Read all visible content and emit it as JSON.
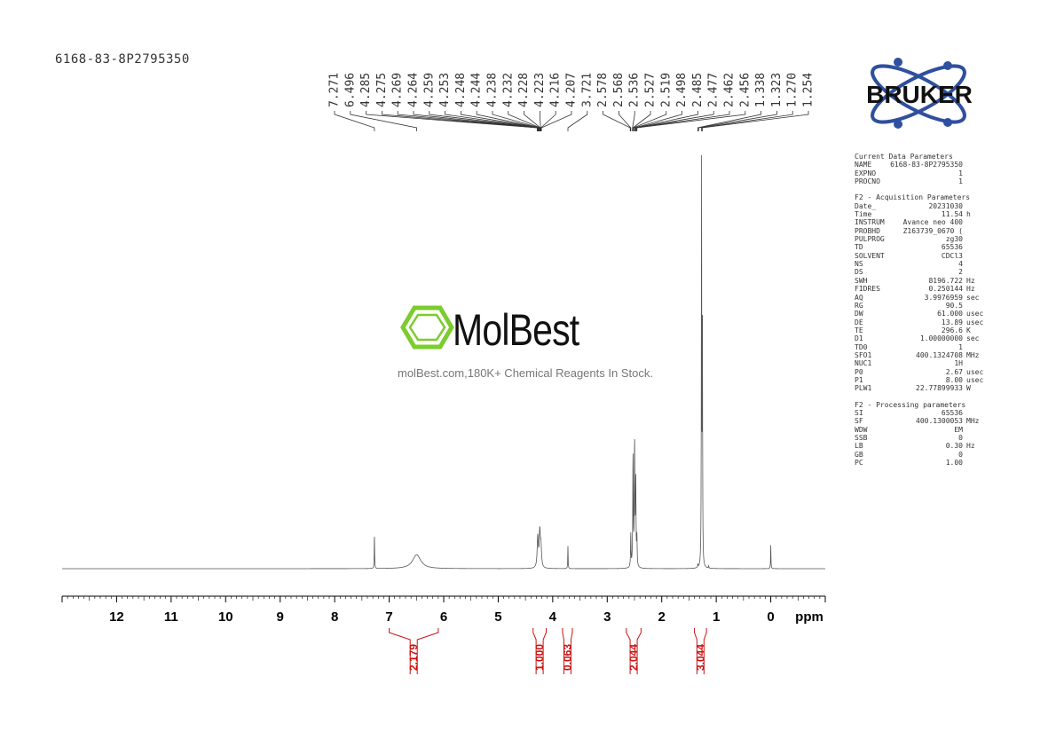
{
  "sample_id": "6168-83-8P2795350",
  "logo": {
    "text": "BRUKER"
  },
  "watermark": {
    "name": "MolBest",
    "tagline": "molBest.com,180K+ Chemical Reagents In Stock."
  },
  "params": {
    "blocks": [
      {
        "title": "Current Data Parameters",
        "rows": [
          {
            "label": "NAME",
            "value": "6168-83-8P2795350",
            "unit": ""
          },
          {
            "label": "EXPNO",
            "value": "1",
            "unit": ""
          },
          {
            "label": "PROCNO",
            "value": "1",
            "unit": ""
          }
        ]
      },
      {
        "title": "F2 - Acquisition Parameters",
        "rows": [
          {
            "label": "Date_",
            "value": "20231030",
            "unit": ""
          },
          {
            "label": "Time",
            "value": "11.54",
            "unit": "h"
          },
          {
            "label": "INSTRUM",
            "value": "Avance neo 400",
            "unit": ""
          },
          {
            "label": "PROBHD",
            "value": "Z163739_0670 (",
            "unit": ""
          },
          {
            "label": "PULPROG",
            "value": "zg30",
            "unit": ""
          },
          {
            "label": "TD",
            "value": "65536",
            "unit": ""
          },
          {
            "label": "SOLVENT",
            "value": "CDCl3",
            "unit": ""
          },
          {
            "label": "NS",
            "value": "4",
            "unit": ""
          },
          {
            "label": "DS",
            "value": "2",
            "unit": ""
          },
          {
            "label": "SWH",
            "value": "8196.722",
            "unit": "Hz"
          },
          {
            "label": "FIDRES",
            "value": "0.250144",
            "unit": "Hz"
          },
          {
            "label": "AQ",
            "value": "3.9976959",
            "unit": "sec"
          },
          {
            "label": "RG",
            "value": "90.5",
            "unit": ""
          },
          {
            "label": "DW",
            "value": "61.000",
            "unit": "usec"
          },
          {
            "label": "DE",
            "value": "13.89",
            "unit": "usec"
          },
          {
            "label": "TE",
            "value": "296.6",
            "unit": "K"
          },
          {
            "label": "D1",
            "value": "1.00000000",
            "unit": "sec"
          },
          {
            "label": "TD0",
            "value": "1",
            "unit": ""
          },
          {
            "label": "SFO1",
            "value": "400.1324708",
            "unit": "MHz"
          },
          {
            "label": "NUC1",
            "value": "1H",
            "unit": ""
          },
          {
            "label": "P0",
            "value": "2.67",
            "unit": "usec"
          },
          {
            "label": "P1",
            "value": "8.00",
            "unit": "usec"
          },
          {
            "label": "PLW1",
            "value": "22.77899933",
            "unit": "W"
          }
        ]
      },
      {
        "title": "F2 - Processing parameters",
        "rows": [
          {
            "label": "SI",
            "value": "65536",
            "unit": ""
          },
          {
            "label": "SF",
            "value": "400.1300053",
            "unit": "MHz"
          },
          {
            "label": "WDW",
            "value": "EM",
            "unit": ""
          },
          {
            "label": "SSB",
            "value": "0",
            "unit": ""
          },
          {
            "label": "LB",
            "value": "0.30",
            "unit": "Hz"
          },
          {
            "label": "GB",
            "value": "0",
            "unit": ""
          },
          {
            "label": "PC",
            "value": "1.00",
            "unit": ""
          }
        ]
      }
    ]
  },
  "chart_data": {
    "type": "line",
    "xlabel": "ppm",
    "xlim": [
      13,
      -1
    ],
    "x_ticks": [
      12,
      11,
      10,
      9,
      8,
      7,
      6,
      5,
      4,
      3,
      2,
      1,
      0
    ],
    "x_minor_step": 0.1,
    "reversed_x": true,
    "peak_labels": [
      "7.271",
      "6.496",
      "4.285",
      "4.275",
      "4.269",
      "4.264",
      "4.259",
      "4.253",
      "4.248",
      "4.244",
      "4.238",
      "4.232",
      "4.228",
      "4.223",
      "4.216",
      "4.207",
      "3.721",
      "2.578",
      "2.568",
      "2.536",
      "2.527",
      "2.519",
      "2.498",
      "2.485",
      "2.477",
      "2.462",
      "2.456",
      "1.338",
      "1.323",
      "1.270",
      "1.254"
    ],
    "peaks": [
      {
        "ppm": 7.271,
        "height": 0.085,
        "width": 0.004
      },
      {
        "ppm": 6.496,
        "height": 0.034,
        "width": 0.09
      },
      {
        "ppm": 4.275,
        "height": 0.075,
        "width": 0.012
      },
      {
        "ppm": 4.238,
        "height": 0.085,
        "width": 0.012
      },
      {
        "ppm": 4.216,
        "height": 0.05,
        "width": 0.012
      },
      {
        "ppm": 3.721,
        "height": 0.055,
        "width": 0.004
      },
      {
        "ppm": 2.568,
        "height": 0.08,
        "width": 0.005
      },
      {
        "ppm": 2.527,
        "height": 0.27,
        "width": 0.006
      },
      {
        "ppm": 2.498,
        "height": 0.3,
        "width": 0.006
      },
      {
        "ppm": 2.477,
        "height": 0.2,
        "width": 0.006
      },
      {
        "ppm": 2.456,
        "height": 0.07,
        "width": 0.005
      },
      {
        "ppm": 1.338,
        "height": 0.008,
        "width": 0.004
      },
      {
        "ppm": 1.27,
        "height": 1.0,
        "width": 0.004
      },
      {
        "ppm": 1.254,
        "height": 0.6,
        "width": 0.004
      },
      {
        "ppm": 1.14,
        "height": 0.006,
        "width": 0.005
      },
      {
        "ppm": 0.0,
        "height": 0.058,
        "width": 0.004
      }
    ],
    "integrals": [
      {
        "from": 7.0,
        "to": 6.1,
        "value": "2.179"
      },
      {
        "from": 4.36,
        "to": 4.12,
        "value": "1.000"
      },
      {
        "from": 3.82,
        "to": 3.64,
        "value": "0.063"
      },
      {
        "from": 2.65,
        "to": 2.38,
        "value": "2.044"
      },
      {
        "from": 1.4,
        "to": 1.18,
        "value": "3.044"
      }
    ],
    "colors": {
      "spectrum": "#555555",
      "integral": "#cc1111",
      "axis": "#000000",
      "logo_blue": "#2f4f9f",
      "watermark_green": "#7ccc2e"
    }
  }
}
